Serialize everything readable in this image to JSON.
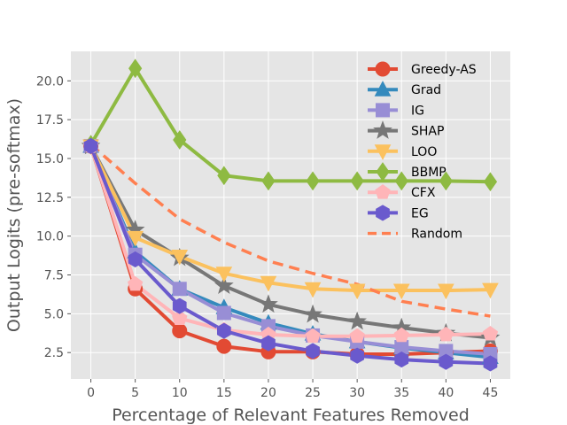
{
  "chart_data": {
    "type": "line",
    "title": "",
    "xlabel": "Percentage of Relevant Features Removed",
    "ylabel": "Output Logits (pre-softmax)",
    "xlim": [
      -2.25,
      47.25
    ],
    "ylim": [
      0.8,
      21.9
    ],
    "x": [
      0,
      5,
      10,
      15,
      20,
      25,
      30,
      35,
      40,
      45
    ],
    "x_ticks": [
      0,
      5,
      10,
      15,
      20,
      25,
      30,
      35,
      40,
      45
    ],
    "y_ticks": [
      2.5,
      5.0,
      7.5,
      10.0,
      12.5,
      15.0,
      17.5,
      20.0
    ],
    "y_tick_labels": [
      "2.5",
      "5.0",
      "7.5",
      "10.0",
      "12.5",
      "15.0",
      "17.5",
      "20.0"
    ],
    "grid": true,
    "legend_position": "upper-right",
    "series": [
      {
        "name": "Greedy-AS",
        "color": "#E24A33",
        "marker": "circle",
        "values": [
          15.8,
          6.6,
          3.9,
          2.9,
          2.55,
          2.55,
          2.4,
          2.4,
          2.5,
          2.6
        ]
      },
      {
        "name": "Grad",
        "color": "#348ABD",
        "marker": "triangle-up",
        "values": [
          15.8,
          9.0,
          6.6,
          5.4,
          4.4,
          3.7,
          3.2,
          2.8,
          2.5,
          2.2
        ]
      },
      {
        "name": "IG",
        "color": "#988ED5",
        "marker": "square",
        "values": [
          15.8,
          8.8,
          6.6,
          5.05,
          4.2,
          3.6,
          3.2,
          2.85,
          2.6,
          2.4
        ]
      },
      {
        "name": "SHAP",
        "color": "#777777",
        "marker": "star",
        "values": [
          15.8,
          10.4,
          8.6,
          6.8,
          5.6,
          4.95,
          4.5,
          4.1,
          3.75,
          3.45
        ]
      },
      {
        "name": "LOO",
        "color": "#FBC15E",
        "marker": "triangle-down",
        "values": [
          15.8,
          9.9,
          8.7,
          7.6,
          7.0,
          6.6,
          6.5,
          6.5,
          6.5,
          6.55
        ]
      },
      {
        "name": "BBMP",
        "color": "#8EBA42",
        "marker": "thin-diamond",
        "values": [
          15.9,
          20.8,
          16.2,
          13.9,
          13.55,
          13.55,
          13.55,
          13.55,
          13.55,
          13.5
        ]
      },
      {
        "name": "CFX",
        "color": "#FFB5B8",
        "marker": "pentagon",
        "values": [
          15.8,
          6.9,
          4.7,
          3.95,
          3.65,
          3.55,
          3.55,
          3.6,
          3.65,
          3.7
        ]
      },
      {
        "name": "EG",
        "color": "#6A5ACD",
        "marker": "hexagon",
        "values": [
          15.8,
          8.5,
          5.5,
          3.9,
          3.1,
          2.6,
          2.3,
          2.05,
          1.9,
          1.8
        ]
      },
      {
        "name": "Random",
        "color": "#FF7F50",
        "marker": "none",
        "dashed": true,
        "values": [
          15.9,
          13.4,
          11.1,
          9.6,
          8.4,
          7.6,
          6.9,
          5.8,
          5.3,
          4.85
        ]
      }
    ]
  }
}
